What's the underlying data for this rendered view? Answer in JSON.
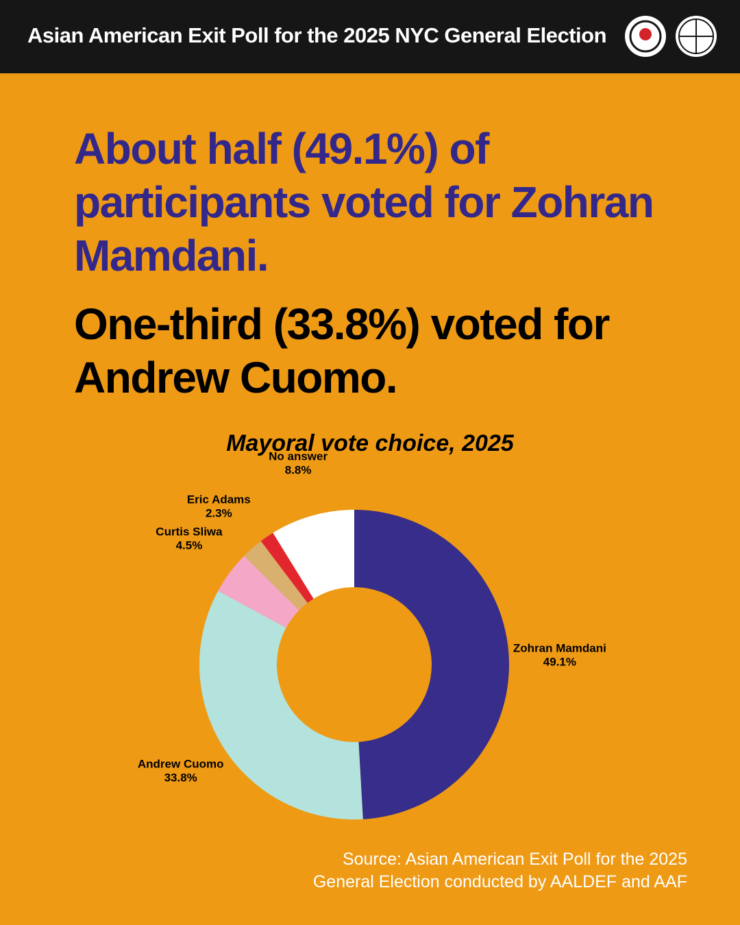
{
  "header": {
    "title": "Asian American Exit Poll for the 2025 NYC General Election"
  },
  "headline": [
    "About half (49.1%) of participants voted for Zohran Mamdani.",
    "One-third (33.8%) voted for Andrew Cuomo."
  ],
  "chart_data": {
    "type": "donut",
    "title": "Mayoral vote choice, 2025",
    "categories": [
      "Zohran Mamdani",
      "Andrew Cuomo",
      "Curtis Sliwa",
      "Eric Adams",
      null,
      "No answer"
    ],
    "values": [
      49.1,
      33.8,
      4.5,
      2.3,
      1.5,
      8.8
    ],
    "value_labels": [
      "49.1%",
      "33.8%",
      "4.5%",
      "2.3%",
      null,
      "8.8%"
    ],
    "colors": [
      "#372d8a",
      "#b3e3dc",
      "#f4a7c6",
      "#d9b06e",
      "#e2262e",
      "#ffffff"
    ]
  },
  "source": [
    "Source: Asian American Exit Poll for the 2025",
    "General Election conducted by AALDEF and AAF"
  ]
}
